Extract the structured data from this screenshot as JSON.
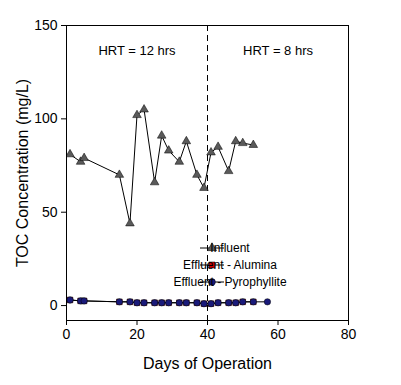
{
  "chart_data": {
    "type": "line",
    "xlabel": "Days of Operation",
    "ylabel": "TOC Concentration (mg/L)",
    "xlim": [
      0,
      80
    ],
    "xticks": [
      0,
      20,
      40,
      60,
      80
    ],
    "ylim": [
      -8,
      150
    ],
    "yticks": [
      0,
      50,
      100,
      150
    ],
    "legend": "lower right",
    "reference_lines": [
      {
        "x": 40,
        "line_style": "dashed"
      }
    ],
    "annotations": [
      {
        "text": "HRT = 12 hrs"
      },
      {
        "text": "HRT = 8 hrs"
      }
    ],
    "series": [
      {
        "name": "Influent",
        "color": "#5a5a5a",
        "marker": "triangle",
        "x": [
          1,
          4,
          5,
          15,
          18,
          20,
          22,
          25,
          27,
          29,
          32,
          34,
          37,
          39,
          41,
          43,
          46,
          48,
          50,
          53
        ],
        "values": [
          81,
          77,
          79,
          70,
          44,
          102,
          105,
          66,
          91,
          83,
          77,
          88,
          70,
          63,
          82,
          85,
          72,
          88,
          87,
          86
        ]
      },
      {
        "name": "Effluent - Alumina",
        "color": "#cc0000",
        "marker": "square",
        "x": [
          1,
          4,
          5,
          15,
          18,
          20,
          22,
          25,
          27,
          29,
          32,
          34,
          37,
          39,
          41,
          43,
          46,
          48,
          50,
          53
        ],
        "values": [
          3,
          2.5,
          2.5,
          2,
          2,
          1.5,
          1.5,
          1.5,
          1.5,
          1.5,
          1.5,
          1.5,
          1.5,
          1,
          1,
          1.5,
          1.5,
          1.5,
          2,
          2
        ]
      },
      {
        "name": "Effluent - Pyrophyllite",
        "color": "#1a1a7a",
        "marker": "circle",
        "x": [
          1,
          4,
          5,
          15,
          18,
          20,
          22,
          25,
          27,
          29,
          32,
          34,
          37,
          39,
          41,
          43,
          46,
          48,
          50,
          53,
          57
        ],
        "values": [
          3,
          2.5,
          2.5,
          2,
          2,
          1.5,
          1.5,
          1.5,
          1.5,
          1.5,
          1.5,
          1.5,
          1.5,
          1,
          1,
          1.5,
          1.5,
          1.5,
          2,
          2,
          2
        ]
      }
    ]
  }
}
